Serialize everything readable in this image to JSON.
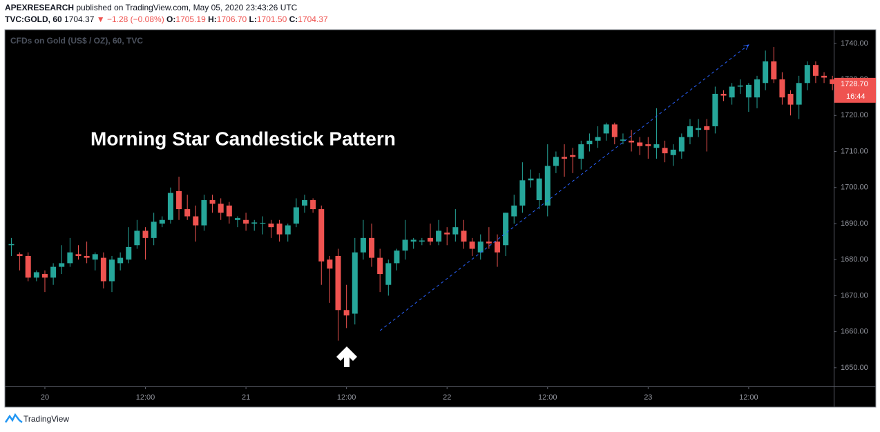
{
  "header": {
    "author": "APEXRESEARCH",
    "published": "published on TradingView.com, May 05, 2020 23:43:26 UTC",
    "symbol": "TVC:GOLD, 60",
    "price": "1704.37",
    "change": "▼ −1.28 (−0.08%)",
    "ohlc": [
      {
        "label": "O:",
        "value": "1705.19"
      },
      {
        "label": "H:",
        "value": "1706.70"
      },
      {
        "label": "L:",
        "value": "1701.50"
      },
      {
        "label": "C:",
        "value": "1704.37"
      }
    ]
  },
  "chart_data": {
    "type": "candlestick",
    "title": "CFDs on Gold (US$ / OZ), 60, TVC",
    "annotation": "Morning Star Candlestick Pattern",
    "up_color": "#26a69a",
    "down_color": "#ef5350",
    "x": [
      -4,
      -3,
      -2,
      -1,
      0,
      1,
      2,
      3,
      4,
      5,
      6,
      7,
      8,
      9,
      10,
      11,
      12,
      13,
      14,
      15,
      16,
      17,
      18,
      19,
      20,
      21,
      22,
      23,
      24,
      25,
      26,
      27,
      28,
      29,
      30,
      31,
      32,
      33,
      34,
      35,
      36,
      37,
      38,
      39,
      40,
      41,
      42,
      43,
      44,
      45,
      46,
      47,
      48,
      49,
      50,
      51,
      52,
      53,
      54,
      55,
      56,
      57,
      58,
      59,
      60,
      61,
      62,
      63,
      64,
      65,
      66,
      67,
      68,
      69,
      70,
      71,
      72,
      73,
      74,
      75,
      76,
      77,
      78,
      79,
      80,
      81,
      82,
      83,
      84,
      85,
      86,
      87,
      88,
      89,
      90,
      91,
      92,
      93,
      94
    ],
    "open": [
      1684,
      1681.5,
      1681,
      1675,
      1676,
      1675,
      1678,
      1679,
      1681.5,
      1681,
      1680,
      1680.5,
      1674,
      1679,
      1680,
      1684,
      1688,
      1686,
      1690,
      1691,
      1699,
      1694,
      1692,
      1689.5,
      1696.5,
      1695.5,
      1695,
      1691,
      1691,
      1690,
      1690,
      1690,
      1690,
      1687,
      1690,
      1695,
      1696.5,
      1694,
      1680,
      1681,
      1666,
      1665,
      1682,
      1686,
      1680.5,
      1673,
      1679,
      1682.5,
      1685,
      1685,
      1686,
      1685,
      1687.5,
      1687,
      1688,
      1685,
      1682,
      1685,
      1685,
      1684,
      1692,
      1695,
      1702,
      1696.5,
      1695,
      1706,
      1708.5,
      1709,
      1708,
      1712,
      1713,
      1715,
      1717.5,
      1713,
      1713,
      1712.5,
      1712,
      1711,
      1711,
      1709,
      1710,
      1714,
      1716,
      1717,
      1717,
      1726,
      1725,
      1728,
      1725,
      1725,
      1729,
      1735,
      1730,
      1726,
      1723,
      1729,
      1734,
      1731,
      1730
    ],
    "high": [
      1686,
      1682,
      1682,
      1677,
      1677,
      1679,
      1684,
      1686,
      1684,
      1685,
      1682,
      1682,
      1681,
      1682,
      1689,
      1691,
      1689,
      1693,
      1692,
      1700,
      1703,
      1698,
      1695,
      1698,
      1698,
      1697,
      1696,
      1692,
      1693,
      1691,
      1692,
      1691,
      1691,
      1690,
      1697,
      1698,
      1697,
      1695,
      1681,
      1683,
      1673,
      1686,
      1691,
      1690,
      1683,
      1680,
      1683,
      1691,
      1686,
      1686,
      1690,
      1691,
      1689,
      1694,
      1691,
      1686,
      1687,
      1689,
      1687,
      1693,
      1698,
      1707,
      1705,
      1704,
      1712,
      1710,
      1712,
      1711,
      1713,
      1715,
      1717,
      1718,
      1718,
      1715,
      1716,
      1714,
      1714,
      1722,
      1713,
      1712,
      1715,
      1719,
      1719,
      1719,
      1728,
      1727,
      1729,
      1730,
      1729,
      1731,
      1738,
      1739,
      1732,
      1727,
      1731,
      1735,
      1735,
      1732,
      1731
    ],
    "low": [
      1681,
      1677,
      1674,
      1674,
      1671,
      1673,
      1676,
      1678,
      1680,
      1679,
      1677,
      1672,
      1671,
      1677,
      1679,
      1683,
      1680,
      1684,
      1689,
      1690,
      1691,
      1691,
      1685,
      1688,
      1693,
      1691,
      1690,
      1689,
      1688,
      1688,
      1687,
      1686,
      1685,
      1685,
      1689,
      1693,
      1693,
      1673,
      1668,
      1657.5,
      1661,
      1662,
      1680,
      1678,
      1671,
      1670,
      1677,
      1680,
      1683,
      1684,
      1684,
      1684,
      1684,
      1685,
      1683,
      1681,
      1680,
      1683,
      1678,
      1681,
      1690,
      1693,
      1700,
      1694,
      1692,
      1704,
      1703,
      1704,
      1705,
      1710,
      1711,
      1713,
      1712,
      1712,
      1710,
      1709,
      1708,
      1708,
      1707,
      1706,
      1708,
      1712,
      1714,
      1710,
      1715,
      1724,
      1723,
      1726,
      1721,
      1722,
      1727,
      1729,
      1723,
      1720,
      1719,
      1727,
      1729,
      1729,
      1727
    ],
    "close": [
      1684.3,
      1681,
      1675,
      1676.5,
      1675,
      1678,
      1679,
      1682,
      1681,
      1680.5,
      1681.5,
      1674,
      1680,
      1680.5,
      1683.5,
      1688,
      1686,
      1690.5,
      1691,
      1698.5,
      1694,
      1692,
      1689.5,
      1696.5,
      1695.5,
      1693,
      1692,
      1691.5,
      1690,
      1690.3,
      1690.2,
      1689,
      1687,
      1689.5,
      1694.5,
      1696.5,
      1694,
      1679.5,
      1677.5,
      1666,
      1664.5,
      1682,
      1686,
      1680.5,
      1676,
      1679,
      1682.5,
      1685.5,
      1685.5,
      1685.3,
      1685,
      1688,
      1687,
      1689,
      1685,
      1683,
      1685,
      1684.5,
      1682,
      1693,
      1695,
      1702,
      1702.5,
      1702.5,
      1706,
      1708.5,
      1708,
      1708.5,
      1712,
      1713,
      1714,
      1717.5,
      1714,
      1713.3,
      1712.5,
      1711.5,
      1711.5,
      1712,
      1709.5,
      1710.5,
      1714,
      1717,
      1716.5,
      1716,
      1726,
      1725.5,
      1728,
      1728.3,
      1728.5,
      1730,
      1735,
      1730,
      1725,
      1723,
      1729,
      1734,
      1731,
      1730.5,
      1728.7
    ],
    "xlim": [
      -4.78,
      94.15
    ],
    "xticks": [
      {
        "value": 0,
        "label": "20"
      },
      {
        "value": 12,
        "label": "12:00"
      },
      {
        "value": 24,
        "label": "21"
      },
      {
        "value": 36,
        "label": "12:00"
      },
      {
        "value": 48,
        "label": "22"
      },
      {
        "value": 60,
        "label": "12:00"
      },
      {
        "value": 72,
        "label": "23"
      },
      {
        "value": 84,
        "label": "12:00"
      }
    ],
    "ylim": [
      1644.8,
      1743.8
    ],
    "yticks": [
      {
        "value": 1650,
        "label": "1650.00"
      },
      {
        "value": 1660,
        "label": "1660.00"
      },
      {
        "value": 1670,
        "label": "1670.00"
      },
      {
        "value": 1680,
        "label": "1680.00"
      },
      {
        "value": 1690,
        "label": "1690.00"
      },
      {
        "value": 1700,
        "label": "1700.00"
      },
      {
        "value": 1710,
        "label": "1710.00"
      },
      {
        "value": 1720,
        "label": "1720.00"
      },
      {
        "value": 1730,
        "label": "1730.00"
      },
      {
        "value": 1740,
        "label": "1740.00"
      }
    ],
    "grid": false,
    "trendline": {
      "x": [
        40,
        84
      ],
      "y": [
        1660.3,
        1739.6
      ],
      "color": "#2962ff"
    },
    "last_price": {
      "value": 1728.7,
      "label": "1728.70"
    },
    "countdown": "16:44"
  },
  "footer": {
    "brand": "TradingView"
  }
}
